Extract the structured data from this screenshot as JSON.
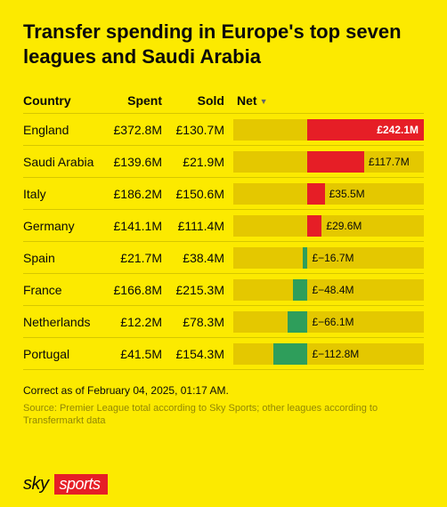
{
  "title": "Transfer spending in Europe's top seven leagues and Saudi Arabia",
  "columns": {
    "country": "Country",
    "spent": "Spent",
    "sold": "Sold",
    "net": "Net"
  },
  "chart": {
    "type": "bar",
    "background_color": "#fcea00",
    "axis_zero_fraction": 0.39,
    "positive_color": "#e61e26",
    "negative_color": "#2e9e5b",
    "track_color": "#e4c800",
    "label_inside_color": "#ffffff",
    "label_outside_color": "#0a0a0a",
    "max_abs_value": 242.1,
    "rows": [
      {
        "country": "England",
        "spent": "£372.8M",
        "sold": "£130.7M",
        "net_value": 242.1,
        "net_label": "£242.1M",
        "label_inside": true
      },
      {
        "country": "Saudi Arabia",
        "spent": "£139.6M",
        "sold": "£21.9M",
        "net_value": 117.7,
        "net_label": "£117.7M",
        "label_inside": false
      },
      {
        "country": "Italy",
        "spent": "£186.2M",
        "sold": "£150.6M",
        "net_value": 35.5,
        "net_label": "£35.5M",
        "label_inside": false
      },
      {
        "country": "Germany",
        "spent": "£141.1M",
        "sold": "£111.4M",
        "net_value": 29.6,
        "net_label": "£29.6M",
        "label_inside": false
      },
      {
        "country": "Spain",
        "spent": "£21.7M",
        "sold": "£38.4M",
        "net_value": -16.7,
        "net_label": "£−16.7M",
        "label_inside": false
      },
      {
        "country": "France",
        "spent": "£166.8M",
        "sold": "£215.3M",
        "net_value": -48.4,
        "net_label": "£−48.4M",
        "label_inside": false
      },
      {
        "country": "Netherlands",
        "spent": "£12.2M",
        "sold": "£78.3M",
        "net_value": -66.1,
        "net_label": "£−66.1M",
        "label_inside": false
      },
      {
        "country": "Portugal",
        "spent": "£41.5M",
        "sold": "£154.3M",
        "net_value": -112.8,
        "net_label": "£−112.8M",
        "label_inside": false
      }
    ]
  },
  "footnote": "Correct as of February 04, 2025, 01:17 AM.",
  "source": "Source: Premier League total according to Sky Sports; other leagues according to Transfermarkt data",
  "logo": {
    "part1": "sky",
    "part2": "sports"
  }
}
